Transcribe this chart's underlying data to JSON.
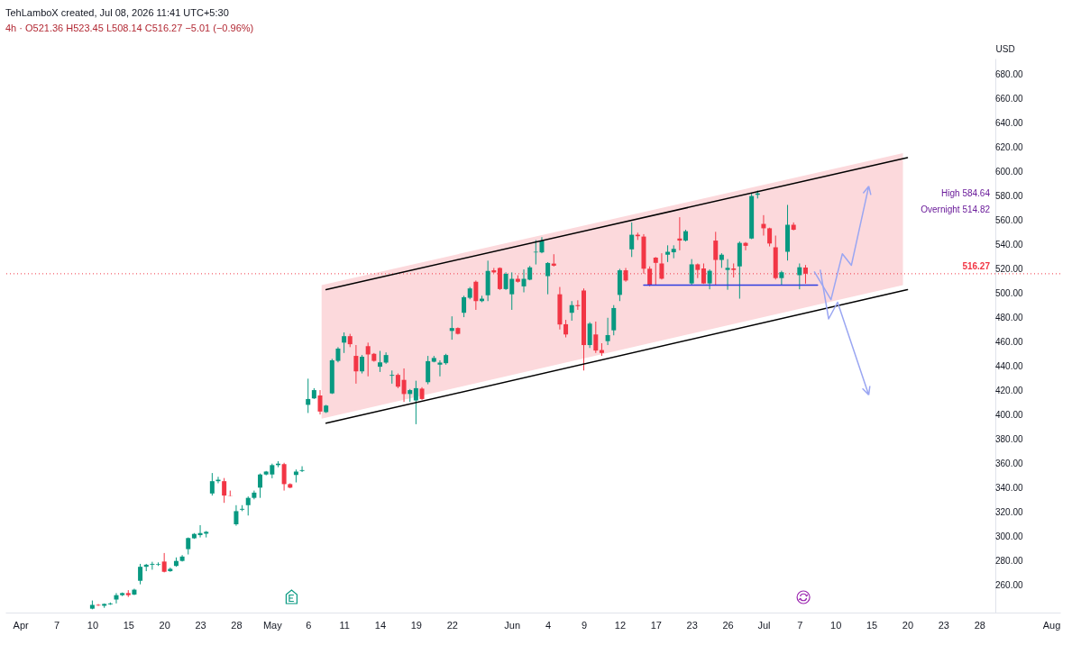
{
  "chart_data": {
    "type": "candlestick",
    "title": "TehLamboX created, Jul 08, 2026 11:41 UTC+5:30",
    "subtitle": "4h · O521.36 H523.45 L508.14 C516.27 −5.01 (−0.96%)",
    "ylabel": "USD",
    "categories": [
      null,
      null,
      "Apr",
      null,
      null,
      null,
      null,
      null,
      "7",
      null,
      null,
      null,
      null,
      null,
      "10",
      null,
      null,
      null,
      null,
      null,
      "15",
      null,
      null,
      null,
      null,
      null,
      "20",
      null,
      null,
      null,
      null,
      null,
      "23",
      null,
      null,
      null,
      null,
      null,
      "28",
      null,
      null,
      null,
      null,
      null,
      "May",
      null,
      null,
      null,
      null,
      null,
      "6",
      null,
      null,
      null,
      null,
      null,
      "11",
      null,
      null,
      null,
      null,
      null,
      "14",
      null,
      null,
      null,
      null,
      null,
      "19",
      null,
      null,
      null,
      null,
      null,
      "22",
      null,
      null,
      null,
      null,
      null,
      null,
      null,
      null,
      null,
      "Jun",
      null,
      null,
      null,
      null,
      null,
      "4",
      null,
      null,
      null,
      null,
      null,
      "9",
      null,
      null,
      null,
      null,
      null,
      "12",
      null,
      null,
      null,
      null,
      null,
      "17",
      null,
      null,
      null,
      null,
      null,
      "23",
      null,
      null,
      null,
      null,
      null,
      "26",
      null,
      null,
      null,
      null,
      null,
      "Jul",
      null,
      null,
      null,
      null,
      null,
      "7",
      null,
      null,
      null,
      null,
      null,
      "10",
      null,
      null,
      null,
      null,
      null,
      "15",
      null,
      null,
      null,
      null,
      null,
      "20",
      null,
      null,
      null,
      null,
      null,
      "23",
      null,
      null,
      null,
      null,
      null,
      "28",
      null,
      null,
      null,
      null,
      null,
      null,
      null,
      null,
      null,
      null,
      null,
      "Aug",
      null
    ],
    "ohlc": [
      null,
      null,
      null,
      null,
      null,
      null,
      null,
      null,
      null,
      null,
      null,
      null,
      null,
      null,
      [
        241.2,
        247.9,
        240.7,
        244.3
      ],
      [
        244.3,
        245.0,
        243.5,
        243.8
      ],
      [
        243.6,
        245.5,
        241.9,
        245.1
      ],
      [
        244.8,
        246.3,
        244.3,
        245.5
      ],
      [
        248.7,
        254.0,
        245.5,
        252.3
      ],
      [
        252.3,
        254.5,
        251.5,
        254.0
      ],
      [
        254.0,
        256.4,
        250.8,
        252.3
      ],
      [
        252.8,
        257.6,
        252.3,
        256.8
      ],
      [
        264.1,
        278.0,
        261.2,
        275.6
      ],
      [
        275.6,
        278.0,
        272.0,
        277.3
      ],
      [
        277.3,
        279.7,
        273.2,
        278.0
      ],
      [
        277.3,
        279.2,
        276.3,
        277.8
      ],
      [
        279.9,
        286.9,
        271.0,
        271.5
      ],
      [
        272.0,
        274.9,
        271.5,
        273.9
      ],
      [
        276.3,
        283.3,
        275.6,
        280.4
      ],
      [
        280.4,
        285.2,
        279.9,
        284.0
      ],
      [
        290.1,
        299.7,
        285.7,
        299.2
      ],
      [
        299.0,
        303.3,
        298.5,
        302.6
      ],
      [
        301.6,
        309.8,
        299.7,
        303.3
      ],
      [
        302.8,
        305.0,
        299.7,
        304.3
      ],
      [
        335.8,
        352.6,
        334.1,
        345.9
      ],
      [
        345.9,
        349.5,
        344.2,
        347.1
      ],
      [
        345.9,
        348.5,
        328.1,
        334.1
      ],
      [
        334.1,
        338.2,
        333.6,
        333.9
      ],
      [
        310.5,
        326.2,
        309.3,
        321.3
      ],
      [
        322.5,
        326.2,
        321.3,
        323.2
      ],
      [
        326.2,
        333.4,
        317.7,
        332.2
      ],
      [
        332.2,
        338.2,
        331.0,
        336.5
      ],
      [
        340.6,
        352.2,
        332.2,
        351.4
      ],
      [
        351.4,
        354.3,
        350.7,
        353.8
      ],
      [
        351.4,
        360.3,
        348.3,
        359.1
      ],
      [
        359.1,
        362.3,
        357.4,
        360.3
      ],
      [
        359.9,
        361.0,
        338.2,
        343.5
      ],
      [
        343.5,
        344.2,
        340.1,
        340.6
      ],
      [
        351.0,
        355.5,
        344.9,
        353.8
      ],
      [
        354.3,
        358.2,
        353.4,
        355.0
      ],
      [
        408.6,
        430.1,
        401.9,
        413.4
      ],
      [
        413.9,
        422.3,
        413.4,
        420.7
      ],
      [
        416.3,
        420.7,
        400.7,
        403.1
      ],
      [
        402.6,
        408.6,
        401.9,
        408.0
      ],
      [
        418.0,
        446.4,
        417.5,
        445.2
      ],
      [
        444.7,
        456.0,
        443.5,
        454.8
      ],
      [
        459.7,
        468.1,
        451.2,
        465.0
      ],
      [
        465.0,
        466.9,
        456.0,
        458.4
      ],
      [
        448.8,
        457.7,
        426.0,
        436.1
      ],
      [
        436.1,
        449.5,
        434.4,
        448.1
      ],
      [
        456.8,
        459.7,
        432.0,
        450.0
      ],
      [
        450.5,
        451.2,
        444.0,
        444.7
      ],
      [
        439.9,
        452.9,
        435.6,
        443.5
      ],
      [
        443.3,
        451.7,
        442.3,
        449.5
      ],
      [
        432.5,
        436.8,
        426.0,
        433.2
      ],
      [
        433.2,
        434.4,
        422.3,
        423.5
      ],
      [
        429.1,
        438.5,
        411.0,
        417.5
      ],
      [
        417.5,
        421.6,
        411.0,
        420.7
      ],
      [
        412.2,
        428.4,
        392.7,
        422.3
      ],
      [
        421.9,
        423.1,
        412.7,
        413.4
      ],
      [
        427.2,
        448.8,
        425.5,
        444.5
      ],
      [
        444.0,
        448.8,
        443.5,
        447.1
      ],
      [
        441.6,
        445.2,
        432.0,
        443.3
      ],
      [
        442.8,
        450.5,
        441.6,
        449.5
      ],
      [
        469.3,
        481.3,
        462.1,
        471.7
      ],
      [
        471.7,
        472.2,
        466.4,
        466.9
      ],
      [
        484.2,
        498.2,
        480.6,
        497.0
      ],
      [
        496.5,
        505.4,
        495.3,
        504.2
      ],
      [
        509.7,
        510.7,
        486.6,
        493.8
      ],
      [
        493.8,
        498.2,
        492.9,
        495.8
      ],
      [
        498.6,
        527.0,
        493.8,
        518.6
      ],
      [
        519.1,
        521.0,
        516.7,
        517.4
      ],
      [
        521.0,
        521.5,
        503.0,
        503.7
      ],
      [
        503.7,
        517.4,
        503.0,
        516.2
      ],
      [
        499.4,
        517.4,
        486.6,
        512.1
      ],
      [
        512.1,
        515.0,
        509.0,
        509.7
      ],
      [
        505.9,
        519.8,
        501.0,
        512.1
      ],
      [
        511.4,
        522.7,
        510.9,
        521.5
      ],
      [
        533.8,
        543.9,
        523.9,
        534.3
      ],
      [
        533.8,
        546.3,
        533.1,
        543.4
      ],
      [
        514.3,
        525.8,
        499.4,
        525.1
      ],
      [
        524.6,
        532.3,
        522.2,
        522.9
      ],
      [
        499.4,
        505.4,
        470.5,
        474.6
      ],
      [
        474.8,
        478.4,
        464.0,
        466.4
      ],
      [
        484.2,
        493.8,
        477.7,
        490.5
      ],
      [
        490.5,
        494.5,
        486.6,
        489.7
      ],
      [
        502.5,
        504.2,
        436.8,
        457.7
      ],
      [
        457.7,
        476.5,
        455.3,
        475.3
      ],
      [
        466.4,
        477.0,
        451.2,
        453.2
      ],
      [
        453.6,
        459.2,
        448.8,
        451.2
      ],
      [
        460.9,
        480.1,
        457.7,
        465.9
      ],
      [
        469.8,
        490.5,
        465.7,
        488.1
      ],
      [
        498.9,
        520.3,
        493.8,
        519.1
      ],
      [
        519.1,
        521.0,
        509.7,
        510.7
      ],
      [
        536.3,
        558.4,
        530.0,
        548.3
      ],
      [
        548.3,
        550.0,
        544.0,
        547.1
      ],
      [
        546.8,
        548.8,
        516.3,
        520.4
      ],
      [
        520.4,
        522.3,
        506.0,
        506.7
      ],
      [
        529.5,
        530.0,
        506.7,
        525.2
      ],
      [
        524.7,
        533.1,
        511.5,
        512.2
      ],
      [
        531.9,
        539.6,
        525.9,
        534.3
      ],
      [
        533.9,
        539.6,
        529.0,
        536.7
      ],
      [
        545.2,
        562.7,
        535.5,
        543.5
      ],
      [
        543.5,
        552.4,
        542.8,
        551.2
      ],
      [
        508.3,
        528.3,
        506.7,
        524.0
      ],
      [
        524.0,
        524.7,
        512.7,
        519.4
      ],
      [
        520.6,
        524.7,
        507.9,
        508.3
      ],
      [
        508.3,
        519.9,
        503.5,
        518.7
      ],
      [
        543.5,
        550.7,
        506.7,
        527.6
      ],
      [
        527.6,
        533.1,
        521.1,
        531.9
      ],
      [
        519.4,
        528.3,
        503.1,
        521.1
      ],
      [
        520.6,
        524.7,
        513.2,
        519.4
      ],
      [
        522.3,
        542.8,
        495.8,
        541.6
      ],
      [
        541.6,
        542.3,
        535.5,
        539.2
      ],
      [
        545.2,
        582.0,
        544.7,
        580.1
      ],
      [
        581.1,
        584.64,
        578.1,
        582.3
      ],
      [
        557.2,
        564.4,
        547.6,
        553.6
      ],
      [
        553.6,
        554.1,
        538.7,
        541.1
      ],
      [
        538.0,
        547.6,
        511.5,
        512.7
      ],
      [
        512.7,
        518.7,
        506.7,
        517.5
      ],
      [
        534.3,
        572.8,
        527.1,
        556.5
      ],
      [
        556.5,
        558.4,
        551.9,
        552.4
      ],
      [
        515.1,
        524.7,
        503.5,
        521.6
      ],
      [
        521.36,
        523.45,
        508.14,
        516.27
      ],
      null,
      null,
      null,
      null,
      null,
      null,
      null,
      null,
      null,
      null,
      null,
      null,
      null,
      null,
      null,
      null,
      null,
      null,
      null,
      null,
      null,
      null,
      null,
      null,
      null,
      null,
      null,
      null,
      null,
      null,
      null,
      null,
      null,
      null,
      null,
      null,
      null,
      null,
      null,
      null,
      null,
      null
    ],
    "series": [
      {
        "type": "line",
        "color": "#000000",
        "values": [
          null,
          null,
          null,
          null,
          null,
          null,
          null,
          null,
          null,
          null,
          null,
          null,
          null,
          null,
          null,
          null,
          null,
          null,
          null,
          null,
          null,
          null,
          null,
          null,
          null,
          null,
          null,
          null,
          null,
          null,
          null,
          null,
          null,
          null,
          null,
          null,
          null,
          null,
          null,
          null,
          null,
          null,
          null,
          null,
          null,
          null,
          null,
          null,
          null,
          null,
          null,
          null,
          null,
          503.2,
          null,
          null,
          null,
          null,
          null,
          null,
          null,
          null,
          null,
          null,
          null,
          null,
          null,
          null,
          null,
          null,
          null,
          null,
          null,
          null,
          null,
          null,
          null,
          null,
          null,
          null,
          null,
          null,
          null,
          null,
          null,
          null,
          null,
          null,
          null,
          null,
          null,
          null,
          null,
          null,
          null,
          null,
          null,
          null,
          null,
          null,
          null,
          null,
          null,
          null,
          null,
          null,
          null,
          null,
          null,
          null,
          null,
          null,
          null,
          null,
          null,
          null,
          null,
          null,
          null,
          null,
          null,
          null,
          null,
          null,
          null,
          null,
          null,
          null,
          null,
          null,
          null,
          null,
          null,
          null,
          null,
          null,
          null,
          null,
          null,
          null,
          null,
          null,
          null,
          null,
          null,
          null,
          null,
          null,
          null,
          null,
          611.6,
          null,
          null,
          null,
          null,
          null,
          null,
          null,
          null,
          null,
          null,
          null,
          null,
          null,
          null,
          null,
          null,
          null,
          null,
          null,
          null,
          null,
          null,
          null,
          null,
          null
        ]
      },
      {
        "type": "line",
        "color": "#000000",
        "values": [
          null,
          null,
          null,
          null,
          null,
          null,
          null,
          null,
          null,
          null,
          null,
          null,
          null,
          null,
          null,
          null,
          null,
          null,
          null,
          null,
          null,
          null,
          null,
          null,
          null,
          null,
          null,
          null,
          null,
          null,
          null,
          null,
          null,
          null,
          null,
          null,
          null,
          null,
          null,
          null,
          null,
          null,
          null,
          null,
          null,
          null,
          null,
          null,
          null,
          null,
          null,
          null,
          null,
          393.5,
          null,
          null,
          null,
          null,
          null,
          null,
          null,
          null,
          null,
          null,
          null,
          null,
          null,
          null,
          null,
          null,
          null,
          null,
          null,
          null,
          null,
          null,
          null,
          null,
          null,
          null,
          null,
          null,
          null,
          null,
          null,
          null,
          null,
          null,
          null,
          null,
          null,
          null,
          null,
          null,
          null,
          null,
          null,
          null,
          null,
          null,
          null,
          null,
          null,
          null,
          null,
          null,
          null,
          null,
          null,
          null,
          null,
          null,
          null,
          null,
          null,
          null,
          null,
          null,
          null,
          null,
          null,
          null,
          null,
          null,
          null,
          null,
          null,
          null,
          null,
          null,
          null,
          null,
          null,
          null,
          null,
          null,
          null,
          null,
          null,
          null,
          null,
          null,
          null,
          null,
          null,
          null,
          null,
          null,
          null,
          null,
          503.2,
          null,
          null,
          null,
          null,
          null,
          null,
          null,
          null,
          null,
          null,
          null,
          null,
          null,
          null,
          null,
          null,
          null,
          null,
          null,
          null,
          null,
          null,
          null,
          null,
          null
        ]
      },
      {
        "type": "line",
        "color": "#2f3fe0",
        "values": [
          null,
          null,
          null,
          null,
          null,
          null,
          null,
          null,
          null,
          null,
          null,
          null,
          null,
          null,
          null,
          null,
          null,
          null,
          null,
          null,
          null,
          null,
          null,
          null,
          null,
          null,
          null,
          null,
          null,
          null,
          null,
          null,
          null,
          null,
          null,
          null,
          null,
          null,
          null,
          null,
          null,
          null,
          null,
          null,
          null,
          null,
          null,
          null,
          null,
          null,
          null,
          null,
          null,
          null,
          null,
          null,
          null,
          null,
          null,
          null,
          null,
          null,
          null,
          null,
          null,
          null,
          null,
          null,
          null,
          null,
          null,
          null,
          null,
          null,
          null,
          null,
          null,
          null,
          null,
          null,
          null,
          null,
          null,
          null,
          null,
          null,
          null,
          null,
          null,
          null,
          null,
          null,
          null,
          null,
          null,
          null,
          null,
          null,
          null,
          null,
          null,
          null,
          null,
          null,
          null,
          null,
          506.9,
          null,
          null,
          null,
          null,
          null,
          null,
          null,
          null,
          null,
          null,
          null,
          null,
          null,
          null,
          null,
          null,
          null,
          null,
          null,
          null,
          null,
          null,
          null,
          null,
          null,
          null,
          null,
          null,
          506.9,
          null,
          null,
          null,
          null,
          null,
          null,
          null,
          null,
          null,
          null,
          null,
          null,
          null,
          null,
          null,
          null,
          null,
          null,
          null,
          null,
          null,
          null,
          null,
          null,
          null,
          null,
          null,
          null,
          null,
          null,
          null,
          null,
          null,
          null,
          null,
          null,
          null,
          null,
          null,
          null
        ]
      }
    ],
    "ref_lines": [
      {
        "axis": "y",
        "value": 516.27,
        "label": "516.27",
        "color": "#f23645",
        "line_style": "dotted"
      }
    ],
    "annotations": [
      "High 584.64",
      "Overnight 514.82"
    ],
    "ylim": [
      238,
      693
    ],
    "yticks": [
      {
        "value": 260,
        "label": "260.00"
      },
      {
        "value": 280,
        "label": "280.00"
      },
      {
        "value": 300,
        "label": "300.00"
      },
      {
        "value": 320,
        "label": "320.00"
      },
      {
        "value": 340,
        "label": "340.00"
      },
      {
        "value": 360,
        "label": "360.00"
      },
      {
        "value": 380,
        "label": "380.00"
      },
      {
        "value": 400,
        "label": "400.00"
      },
      {
        "value": 420,
        "label": "420.00"
      },
      {
        "value": 440,
        "label": "440.00"
      },
      {
        "value": 460,
        "label": "460.00"
      },
      {
        "value": 480,
        "label": "480.00"
      },
      {
        "value": 500,
        "label": "500.00"
      },
      {
        "value": 520,
        "label": "520.00"
      },
      {
        "value": 540,
        "label": "540.00"
      },
      {
        "value": 560,
        "label": "560.00"
      },
      {
        "value": 580,
        "label": "580.00"
      },
      {
        "value": 600,
        "label": "600.00"
      },
      {
        "value": 620,
        "label": "620.00"
      },
      {
        "value": 640,
        "label": "640.00"
      },
      {
        "value": 660,
        "label": "660.00"
      },
      {
        "value": 680,
        "label": "680.00"
      }
    ]
  }
}
